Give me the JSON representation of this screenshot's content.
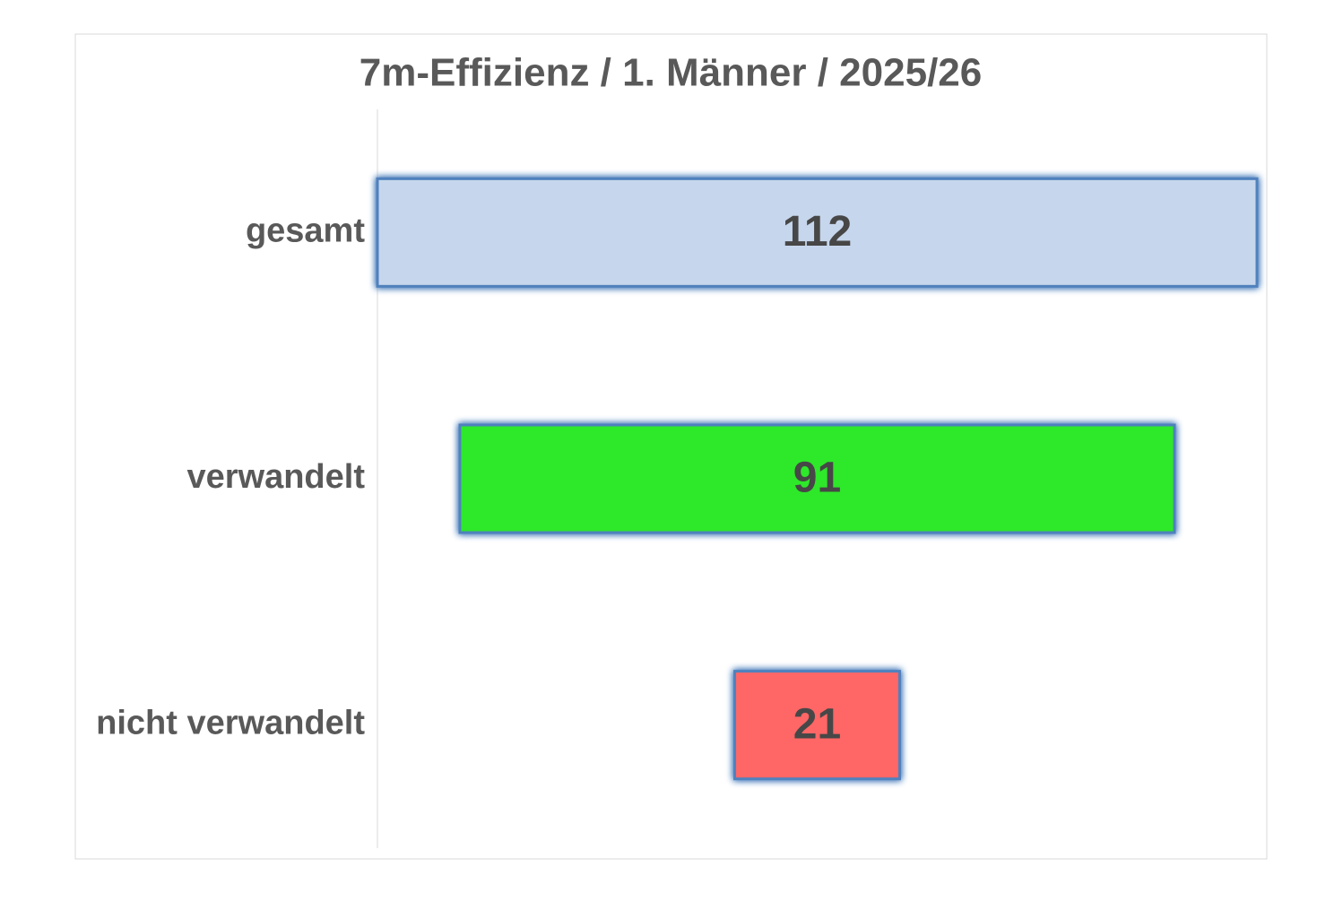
{
  "chart_data": {
    "type": "funnel",
    "title": "7m-Effizienz / 1. Männer / 2025/26",
    "categories": [
      "gesamt",
      "verwandelt",
      "nicht verwandelt"
    ],
    "values": [
      112,
      91,
      21
    ],
    "colors": [
      "#c6d6ec",
      "#2ee82a",
      "#ff6666"
    ]
  }
}
